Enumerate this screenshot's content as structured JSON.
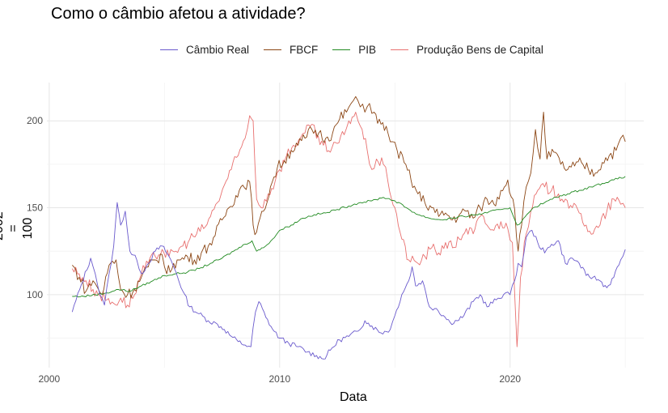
{
  "chart_data": {
    "type": "line",
    "title": "Como o câmbio afetou a atividade?",
    "xlabel": "Data",
    "ylabel": "2002 = 100",
    "xlim": [
      1999.9,
      2025.8
    ],
    "ylim": [
      58,
      222
    ],
    "x_ticks": [
      2000,
      2010,
      2020
    ],
    "y_ticks": [
      100,
      150,
      200
    ],
    "grid": true,
    "legend_position": "top",
    "series": [
      {
        "name": "Câmbio Real",
        "color": "#6a5acd",
        "points": [
          [
            2001.0,
            90
          ],
          [
            2001.4,
            106
          ],
          [
            2001.8,
            121
          ],
          [
            2002.0,
            112
          ],
          [
            2002.2,
            100
          ],
          [
            2002.4,
            94
          ],
          [
            2002.6,
            112
          ],
          [
            2002.8,
            128
          ],
          [
            2002.95,
            153
          ],
          [
            2003.1,
            140
          ],
          [
            2003.3,
            148
          ],
          [
            2003.5,
            125
          ],
          [
            2003.8,
            120
          ],
          [
            2004.0,
            112
          ],
          [
            2004.3,
            118
          ],
          [
            2004.6,
            125
          ],
          [
            2004.9,
            128
          ],
          [
            2005.2,
            122
          ],
          [
            2005.5,
            113
          ],
          [
            2005.8,
            102
          ],
          [
            2006.1,
            93
          ],
          [
            2006.5,
            89
          ],
          [
            2006.9,
            85
          ],
          [
            2007.3,
            83
          ],
          [
            2007.6,
            80
          ],
          [
            2007.9,
            76
          ],
          [
            2008.2,
            73
          ],
          [
            2008.5,
            71
          ],
          [
            2008.75,
            70
          ],
          [
            2008.95,
            90
          ],
          [
            2009.1,
            96
          ],
          [
            2009.4,
            87
          ],
          [
            2009.7,
            80
          ],
          [
            2010.0,
            75
          ],
          [
            2010.4,
            72
          ],
          [
            2010.8,
            70
          ],
          [
            2011.2,
            67
          ],
          [
            2011.6,
            65
          ],
          [
            2011.9,
            63
          ],
          [
            2012.2,
            68
          ],
          [
            2012.6,
            74
          ],
          [
            2013.0,
            76
          ],
          [
            2013.4,
            79
          ],
          [
            2013.7,
            85
          ],
          [
            2014.0,
            82
          ],
          [
            2014.4,
            78
          ],
          [
            2014.8,
            80
          ],
          [
            2015.0,
            88
          ],
          [
            2015.3,
            100
          ],
          [
            2015.6,
            108
          ],
          [
            2015.75,
            116
          ],
          [
            2015.9,
            105
          ],
          [
            2016.2,
            108
          ],
          [
            2016.5,
            93
          ],
          [
            2016.8,
            92
          ],
          [
            2017.1,
            88
          ],
          [
            2017.4,
            84
          ],
          [
            2017.7,
            85
          ],
          [
            2018.0,
            88
          ],
          [
            2018.4,
            96
          ],
          [
            2018.7,
            100
          ],
          [
            2019.0,
            93
          ],
          [
            2019.4,
            97
          ],
          [
            2019.8,
            101
          ],
          [
            2020.0,
            100
          ],
          [
            2020.2,
            108
          ],
          [
            2020.35,
            118
          ],
          [
            2020.5,
            116
          ],
          [
            2020.7,
            133
          ],
          [
            2020.95,
            137
          ],
          [
            2021.2,
            130
          ],
          [
            2021.5,
            124
          ],
          [
            2021.8,
            129
          ],
          [
            2022.1,
            131
          ],
          [
            2022.4,
            118
          ],
          [
            2022.7,
            121
          ],
          [
            2023.0,
            118
          ],
          [
            2023.3,
            111
          ],
          [
            2023.6,
            110
          ],
          [
            2023.9,
            108
          ],
          [
            2024.2,
            104
          ],
          [
            2024.5,
            110
          ],
          [
            2024.8,
            120
          ],
          [
            2025.0,
            126
          ]
        ]
      },
      {
        "name": "FBCF",
        "color": "#8b4513",
        "points": [
          [
            2001.0,
            117
          ],
          [
            2001.3,
            110
          ],
          [
            2001.6,
            102
          ],
          [
            2001.9,
            108
          ],
          [
            2002.1,
            104
          ],
          [
            2002.3,
            100
          ],
          [
            2002.6,
            117
          ],
          [
            2002.9,
            120
          ],
          [
            2003.1,
            103
          ],
          [
            2003.4,
            100
          ],
          [
            2003.7,
            103
          ],
          [
            2004.0,
            110
          ],
          [
            2004.3,
            116
          ],
          [
            2004.6,
            120
          ],
          [
            2004.9,
            123
          ],
          [
            2005.1,
            112
          ],
          [
            2005.4,
            118
          ],
          [
            2005.7,
            120
          ],
          [
            2006.0,
            122
          ],
          [
            2006.3,
            120
          ],
          [
            2006.6,
            124
          ],
          [
            2006.9,
            128
          ],
          [
            2007.2,
            134
          ],
          [
            2007.5,
            143
          ],
          [
            2007.8,
            150
          ],
          [
            2008.1,
            157
          ],
          [
            2008.4,
            163
          ],
          [
            2008.7,
            165
          ],
          [
            2008.85,
            140
          ],
          [
            2009.0,
            136
          ],
          [
            2009.3,
            148
          ],
          [
            2009.6,
            162
          ],
          [
            2009.9,
            173
          ],
          [
            2010.2,
            177
          ],
          [
            2010.5,
            183
          ],
          [
            2010.8,
            186
          ],
          [
            2011.1,
            190
          ],
          [
            2011.4,
            195
          ],
          [
            2011.7,
            193
          ],
          [
            2012.0,
            190
          ],
          [
            2012.3,
            193
          ],
          [
            2012.6,
            201
          ],
          [
            2012.9,
            205
          ],
          [
            2013.1,
            210
          ],
          [
            2013.3,
            214
          ],
          [
            2013.5,
            208
          ],
          [
            2013.7,
            205
          ],
          [
            2013.9,
            210
          ],
          [
            2014.1,
            205
          ],
          [
            2014.4,
            198
          ],
          [
            2014.7,
            193
          ],
          [
            2014.9,
            188
          ],
          [
            2015.1,
            183
          ],
          [
            2015.4,
            176
          ],
          [
            2015.7,
            166
          ],
          [
            2016.0,
            158
          ],
          [
            2016.3,
            153
          ],
          [
            2016.6,
            150
          ],
          [
            2016.9,
            145
          ],
          [
            2017.2,
            147
          ],
          [
            2017.5,
            143
          ],
          [
            2017.8,
            146
          ],
          [
            2018.1,
            148
          ],
          [
            2018.4,
            144
          ],
          [
            2018.7,
            150
          ],
          [
            2019.0,
            155
          ],
          [
            2019.3,
            152
          ],
          [
            2019.6,
            160
          ],
          [
            2019.9,
            166
          ],
          [
            2020.2,
            149
          ],
          [
            2020.35,
            125
          ],
          [
            2020.5,
            140
          ],
          [
            2020.7,
            162
          ],
          [
            2020.9,
            170
          ],
          [
            2021.1,
            195
          ],
          [
            2021.3,
            178
          ],
          [
            2021.45,
            205
          ],
          [
            2021.6,
            178
          ],
          [
            2021.9,
            182
          ],
          [
            2022.2,
            175
          ],
          [
            2022.5,
            172
          ],
          [
            2022.8,
            174
          ],
          [
            2023.1,
            176
          ],
          [
            2023.4,
            172
          ],
          [
            2023.7,
            170
          ],
          [
            2024.0,
            176
          ],
          [
            2024.3,
            180
          ],
          [
            2024.6,
            183
          ],
          [
            2024.8,
            190
          ],
          [
            2025.0,
            188
          ]
        ]
      },
      {
        "name": "PIB",
        "color": "#228b22",
        "points": [
          [
            2001.0,
            99
          ],
          [
            2001.5,
            99
          ],
          [
            2002.0,
            100
          ],
          [
            2002.5,
            101
          ],
          [
            2003.0,
            103
          ],
          [
            2003.5,
            102
          ],
          [
            2004.0,
            105
          ],
          [
            2004.5,
            108
          ],
          [
            2005.0,
            111
          ],
          [
            2005.5,
            112
          ],
          [
            2006.0,
            113
          ],
          [
            2006.5,
            115
          ],
          [
            2007.0,
            118
          ],
          [
            2007.5,
            121
          ],
          [
            2008.0,
            125
          ],
          [
            2008.5,
            129
          ],
          [
            2008.8,
            131
          ],
          [
            2009.0,
            125
          ],
          [
            2009.3,
            127
          ],
          [
            2009.7,
            132
          ],
          [
            2010.0,
            137
          ],
          [
            2010.5,
            140
          ],
          [
            2011.0,
            144
          ],
          [
            2011.5,
            146
          ],
          [
            2012.0,
            147
          ],
          [
            2012.5,
            149
          ],
          [
            2013.0,
            151
          ],
          [
            2013.5,
            153
          ],
          [
            2014.0,
            154
          ],
          [
            2014.5,
            156
          ],
          [
            2015.0,
            154
          ],
          [
            2015.5,
            150
          ],
          [
            2016.0,
            146
          ],
          [
            2016.5,
            144
          ],
          [
            2017.0,
            143
          ],
          [
            2017.5,
            144
          ],
          [
            2018.0,
            145
          ],
          [
            2018.5,
            146
          ],
          [
            2019.0,
            147
          ],
          [
            2019.5,
            149
          ],
          [
            2020.0,
            150
          ],
          [
            2020.3,
            140
          ],
          [
            2020.5,
            142
          ],
          [
            2020.8,
            147
          ],
          [
            2021.0,
            150
          ],
          [
            2021.5,
            153
          ],
          [
            2022.0,
            156
          ],
          [
            2022.5,
            158
          ],
          [
            2023.0,
            160
          ],
          [
            2023.5,
            162
          ],
          [
            2024.0,
            164
          ],
          [
            2024.5,
            166
          ],
          [
            2025.0,
            168
          ]
        ]
      },
      {
        "name": "Produção Bens de Capital",
        "color": "#e8706f",
        "points": [
          [
            2001.0,
            115
          ],
          [
            2001.3,
            112
          ],
          [
            2001.6,
            108
          ],
          [
            2001.9,
            103
          ],
          [
            2002.2,
            100
          ],
          [
            2002.5,
            97
          ],
          [
            2002.8,
            95
          ],
          [
            2003.1,
            98
          ],
          [
            2003.4,
            94
          ],
          [
            2003.7,
            100
          ],
          [
            2004.0,
            112
          ],
          [
            2004.3,
            118
          ],
          [
            2004.6,
            122
          ],
          [
            2004.9,
            126
          ],
          [
            2005.2,
            122
          ],
          [
            2005.5,
            125
          ],
          [
            2005.8,
            128
          ],
          [
            2006.1,
            132
          ],
          [
            2006.4,
            135
          ],
          [
            2006.7,
            138
          ],
          [
            2007.0,
            145
          ],
          [
            2007.3,
            153
          ],
          [
            2007.6,
            163
          ],
          [
            2007.9,
            172
          ],
          [
            2008.2,
            180
          ],
          [
            2008.5,
            190
          ],
          [
            2008.7,
            203
          ],
          [
            2008.85,
            200
          ],
          [
            2009.0,
            155
          ],
          [
            2009.2,
            150
          ],
          [
            2009.5,
            158
          ],
          [
            2009.8,
            165
          ],
          [
            2010.0,
            172
          ],
          [
            2010.3,
            180
          ],
          [
            2010.6,
            186
          ],
          [
            2010.9,
            190
          ],
          [
            2011.1,
            193
          ],
          [
            2011.4,
            198
          ],
          [
            2011.6,
            190
          ],
          [
            2011.9,
            186
          ],
          [
            2012.2,
            182
          ],
          [
            2012.5,
            187
          ],
          [
            2012.8,
            192
          ],
          [
            2013.0,
            200
          ],
          [
            2013.3,
            205
          ],
          [
            2013.5,
            197
          ],
          [
            2013.8,
            183
          ],
          [
            2014.0,
            172
          ],
          [
            2014.2,
            178
          ],
          [
            2014.5,
            175
          ],
          [
            2014.7,
            165
          ],
          [
            2015.0,
            150
          ],
          [
            2015.3,
            132
          ],
          [
            2015.6,
            120
          ],
          [
            2016.0,
            118
          ],
          [
            2016.3,
            122
          ],
          [
            2016.6,
            127
          ],
          [
            2016.9,
            124
          ],
          [
            2017.2,
            130
          ],
          [
            2017.5,
            127
          ],
          [
            2017.8,
            132
          ],
          [
            2018.1,
            138
          ],
          [
            2018.4,
            135
          ],
          [
            2018.7,
            145
          ],
          [
            2019.0,
            140
          ],
          [
            2019.3,
            137
          ],
          [
            2019.6,
            142
          ],
          [
            2019.9,
            138
          ],
          [
            2020.1,
            130
          ],
          [
            2020.3,
            70
          ],
          [
            2020.45,
            110
          ],
          [
            2020.7,
            135
          ],
          [
            2020.9,
            148
          ],
          [
            2021.2,
            160
          ],
          [
            2021.5,
            162
          ],
          [
            2021.8,
            160
          ],
          [
            2022.1,
            158
          ],
          [
            2022.4,
            155
          ],
          [
            2022.7,
            150
          ],
          [
            2023.0,
            147
          ],
          [
            2023.3,
            140
          ],
          [
            2023.6,
            135
          ],
          [
            2023.9,
            140
          ],
          [
            2024.2,
            148
          ],
          [
            2024.5,
            155
          ],
          [
            2024.8,
            152
          ],
          [
            2025.0,
            150
          ]
        ]
      }
    ]
  }
}
